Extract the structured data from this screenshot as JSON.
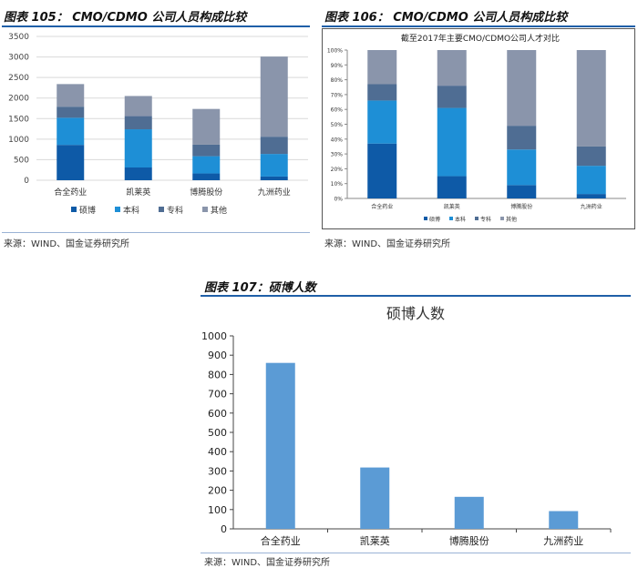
{
  "figures": [
    {
      "title": "图表 105：  CMO/CDMO 公司人员构成比较",
      "source": "来源：WIND、国金证券研究所"
    },
    {
      "title": "图表 106：  CMO/CDMO 公司人员构成比较",
      "source": "来源：WIND、国金证券研究所"
    },
    {
      "title": "图表 107：硕博人数",
      "source": "来源：WIND、国金证券研究所"
    }
  ],
  "colors": {
    "rule": "#1f5fa8",
    "phd": "#0e5aa7",
    "bachelor": "#1e8fd6",
    "college": "#4f6d93",
    "other": "#8a95ab",
    "single": "#5b9bd5"
  },
  "chart_data": [
    {
      "type": "bar",
      "stacked": true,
      "title": "",
      "categories": [
        "合全药业",
        "凯莱英",
        "博腾股份",
        "九洲药业"
      ],
      "series": [
        {
          "name": "硕博",
          "values": [
            860,
            310,
            165,
            90
          ]
        },
        {
          "name": "本科",
          "values": [
            660,
            930,
            420,
            550
          ]
        },
        {
          "name": "专科",
          "values": [
            270,
            320,
            280,
            420
          ]
        },
        {
          "name": "其他",
          "values": [
            550,
            490,
            870,
            1950
          ]
        }
      ],
      "ylim": [
        0,
        3500
      ],
      "yticks": [
        "0",
        "500",
        "1000",
        "1500",
        "2000",
        "2500",
        "3000",
        "3500"
      ],
      "legend": "bottom",
      "grid": true
    },
    {
      "type": "bar",
      "stacked": true,
      "percent": true,
      "title": "截至2017年主要CMO/CDMO公司人才对比",
      "categories": [
        "合全药业",
        "凯莱英",
        "博腾股份",
        "九洲药业"
      ],
      "series": [
        {
          "name": "硕博",
          "values": [
            37,
            15,
            9,
            3
          ]
        },
        {
          "name": "本科",
          "values": [
            29,
            46,
            24,
            19
          ]
        },
        {
          "name": "专科",
          "values": [
            11,
            15,
            16,
            13
          ]
        },
        {
          "name": "其他",
          "values": [
            23,
            24,
            51,
            65
          ]
        }
      ],
      "ylim": [
        0,
        100
      ],
      "yticks": [
        "0%",
        "10%",
        "20%",
        "30%",
        "40%",
        "50%",
        "60%",
        "70%",
        "80%",
        "90%",
        "100%"
      ],
      "legend": "bottom",
      "grid": false
    },
    {
      "type": "bar",
      "title": "硕博人数",
      "categories": [
        "合全药业",
        "凯莱英",
        "博腾股份",
        "九洲药业"
      ],
      "values": [
        860,
        318,
        166,
        92
      ],
      "ylim": [
        0,
        1000
      ],
      "yticks": [
        "0",
        "100",
        "200",
        "300",
        "400",
        "500",
        "600",
        "700",
        "800",
        "900",
        "1000"
      ],
      "grid": false
    }
  ]
}
